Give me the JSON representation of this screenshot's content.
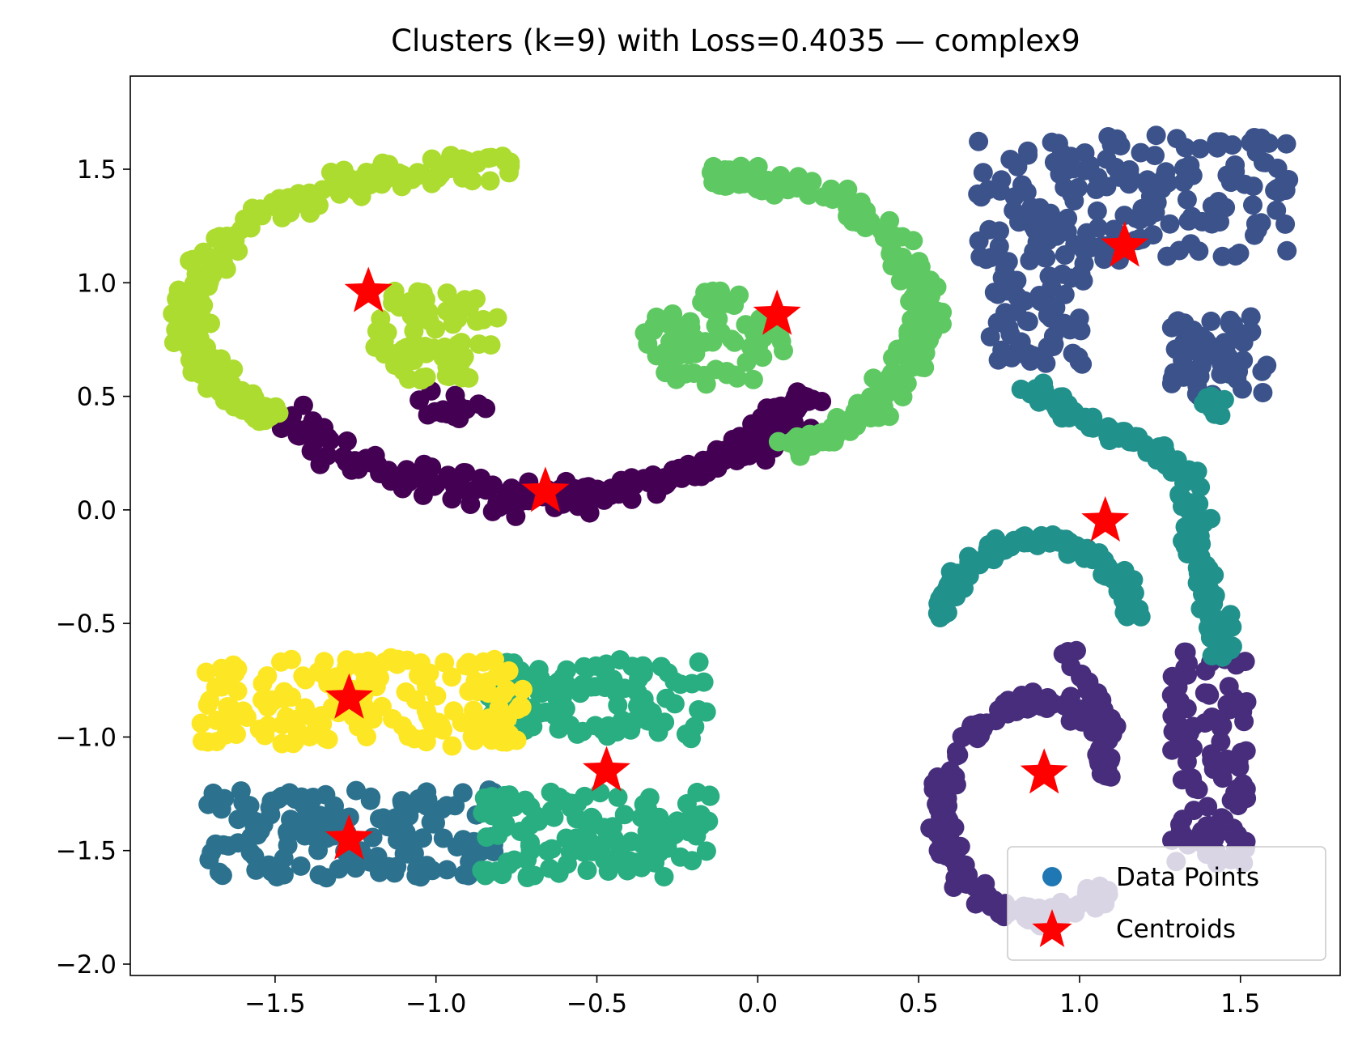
{
  "chart_data": {
    "type": "scatter",
    "title": "Clusters (k=9) with Loss=0.4035 — complex9",
    "xlabel": "",
    "ylabel": "",
    "xlim": [
      -1.95,
      1.81
    ],
    "ylim": [
      -2.05,
      1.91
    ],
    "xticks": [
      -1.5,
      -1.0,
      -0.5,
      0.0,
      0.5,
      1.0,
      1.5
    ],
    "xtick_labels": [
      "−1.5",
      "−1.0",
      "−0.5",
      "0.0",
      "0.5",
      "1.0",
      "1.5"
    ],
    "yticks": [
      1.5,
      1.0,
      0.5,
      0.0,
      -0.5,
      -1.0,
      -1.5,
      -2.0
    ],
    "ytick_labels": [
      "1.5",
      "1.0",
      "0.5",
      "0.0",
      "−0.5",
      "−1.0",
      "−1.5",
      "−2.0"
    ],
    "grid": false,
    "legend": {
      "position": "lower-right",
      "entries": [
        {
          "label": "Data Points",
          "marker": "circle",
          "color": "#1f77b4"
        },
        {
          "label": "Centroids",
          "marker": "star",
          "color": "#ff0000"
        }
      ]
    },
    "cluster_colors": [
      "#440154",
      "#472d7b",
      "#3b528b",
      "#2c728e",
      "#21918c",
      "#28ae80",
      "#5ec962",
      "#addc30",
      "#fde725"
    ],
    "clusters": [
      {
        "id": 0,
        "color": "#440154",
        "shapes": [
          {
            "kind": "arc",
            "cx": -0.67,
            "cy": 0.95,
            "rx": 0.96,
            "ry": 0.9,
            "a0": 215,
            "a1": 330,
            "w": 0.22,
            "n": 190
          },
          {
            "kind": "blob",
            "cx": -0.95,
            "cy": 0.47,
            "rx": 0.12,
            "ry": 0.07,
            "n": 14
          }
        ]
      },
      {
        "id": 1,
        "color": "#472d7b",
        "shapes": [
          {
            "kind": "arc",
            "cx": 0.87,
            "cy": -1.32,
            "rx": 0.3,
            "ry": 0.47,
            "a0": 40,
            "a1": 315,
            "w": 0.12,
            "n": 190
          },
          {
            "kind": "rect",
            "x0": 1.28,
            "x1": 1.52,
            "y0": -1.57,
            "y1": -0.62,
            "n": 110
          },
          {
            "kind": "band",
            "x0": 0.96,
            "y0": -0.62,
            "x1": 1.1,
            "y1": -0.95,
            "w": 0.07,
            "n": 22
          },
          {
            "kind": "band",
            "x0": 1.05,
            "y0": -1.05,
            "x1": 1.1,
            "y1": -1.18,
            "w": 0.08,
            "n": 18
          }
        ]
      },
      {
        "id": 2,
        "color": "#3b528b",
        "shapes": [
          {
            "kind": "rect",
            "x0": 0.68,
            "x1": 1.65,
            "y0": 1.1,
            "y1": 1.65,
            "n": 170
          },
          {
            "kind": "rect",
            "x0": 0.72,
            "x1": 1.02,
            "y0": 0.62,
            "y1": 1.12,
            "n": 60
          },
          {
            "kind": "rect",
            "x0": 1.28,
            "x1": 1.6,
            "y0": 0.5,
            "y1": 0.85,
            "n": 60
          }
        ]
      },
      {
        "id": 3,
        "color": "#2c728e",
        "shapes": [
          {
            "kind": "rect",
            "x0": -1.72,
            "x1": -0.82,
            "y0": -1.62,
            "y1": -1.23,
            "n": 150
          }
        ]
      },
      {
        "id": 4,
        "color": "#21918c",
        "shapes": [
          {
            "kind": "band",
            "x0": 0.82,
            "y0": 0.55,
            "x1": 1.38,
            "y1": 0.15,
            "w": 0.12,
            "n": 70
          },
          {
            "kind": "band",
            "x0": 1.32,
            "y0": 0.2,
            "x1": 1.45,
            "y1": -0.65,
            "w": 0.13,
            "n": 80
          },
          {
            "kind": "arc",
            "cx": 0.87,
            "cy": -0.55,
            "rx": 0.3,
            "ry": 0.42,
            "a0": 10,
            "a1": 170,
            "w": 0.11,
            "n": 110
          },
          {
            "kind": "blob",
            "cx": 1.41,
            "cy": 0.45,
            "rx": 0.07,
            "ry": 0.05,
            "n": 8
          }
        ]
      },
      {
        "id": 5,
        "color": "#28ae80",
        "shapes": [
          {
            "kind": "rect",
            "x0": -0.86,
            "x1": -0.14,
            "y0": -1.62,
            "y1": -1.24,
            "n": 130
          },
          {
            "kind": "rect",
            "x0": -0.85,
            "x1": -0.16,
            "y0": -1.01,
            "y1": -0.66,
            "n": 100
          }
        ]
      },
      {
        "id": 6,
        "color": "#5ec962",
        "shapes": [
          {
            "kind": "arc",
            "cx": -0.09,
            "cy": 0.86,
            "rx": 0.6,
            "ry": 0.6,
            "a0": -75,
            "a1": 95,
            "w": 0.18,
            "n": 220
          },
          {
            "kind": "blob",
            "cx": -0.14,
            "cy": 0.75,
            "rx": 0.23,
            "ry": 0.22,
            "n": 70
          }
        ]
      },
      {
        "id": 7,
        "color": "#addc30",
        "shapes": [
          {
            "kind": "arc",
            "cx": -0.85,
            "cy": 0.86,
            "rx": 0.92,
            "ry": 0.65,
            "a0": 85,
            "a1": 225,
            "w": 0.17,
            "n": 230
          },
          {
            "kind": "blob",
            "cx": -1.0,
            "cy": 0.78,
            "rx": 0.2,
            "ry": 0.24,
            "n": 70
          }
        ]
      },
      {
        "id": 8,
        "color": "#fde725",
        "shapes": [
          {
            "kind": "rect",
            "x0": -1.73,
            "x1": -0.72,
            "y0": -1.04,
            "y1": -0.65,
            "n": 170
          }
        ]
      }
    ],
    "centroids": [
      {
        "x": -0.66,
        "y": 0.08
      },
      {
        "x": 0.89,
        "y": -1.16
      },
      {
        "x": 1.14,
        "y": 1.16
      },
      {
        "x": -1.27,
        "y": -1.45
      },
      {
        "x": 1.08,
        "y": -0.05
      },
      {
        "x": -0.47,
        "y": -1.15
      },
      {
        "x": 0.06,
        "y": 0.86
      },
      {
        "x": -1.21,
        "y": 0.96
      },
      {
        "x": -1.27,
        "y": -0.83
      }
    ]
  }
}
